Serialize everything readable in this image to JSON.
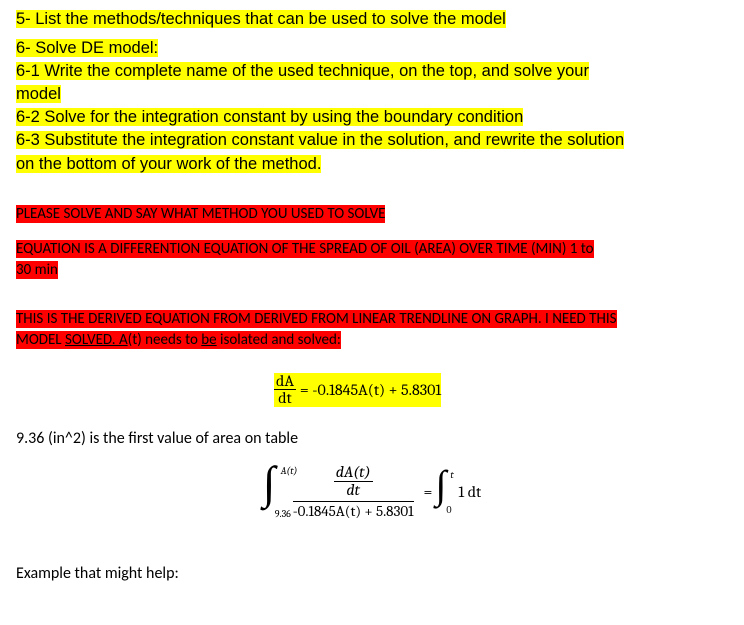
{
  "colors": {
    "highlight_yellow": "#ffff00",
    "highlight_red": "#ff0000",
    "text": "#000000",
    "background": "#ffffff"
  },
  "font": {
    "body": "Arial",
    "notes": "Calibri",
    "math": "Cambria Math",
    "body_size_pt": 12,
    "math_size_pt": 12
  },
  "q5": "5-  List the methods/techniques that can be used to solve the model",
  "q6_header": "6-  Solve DE model:",
  "q6_1a": "6-1 Write the complete name of the used technique, on the top, and solve your",
  "q6_1b": "model",
  "q6_2": "6-2 Solve for the integration constant by using the boundary condition",
  "q6_3a": "6-3 Substitute the integration constant value in the solution, and rewrite the solution",
  "q6_3b": "on the bottom of your work of the method.",
  "please": "PLEASE SOLVE AND SAY WHAT METHOD YOU USED TO SOLVE",
  "desc_a": "EQUATION IS A DIFFERENTION EQUATION OF THE SPREAD OF OIL (AREA) OVER TIME (MIN) 1 to",
  "desc_b": "30 min",
  "derived_a": "THIS IS THE DERIVED EQUATION FROM DERIVED FROM LINEAR TRENDLINE ON GRAPH. I NEED THIS",
  "derived_b_pre": "MODEL ",
  "derived_b_u1": "SOLVED. A",
  "derived_b_mid": "(t) needs to ",
  "derived_b_u2": "be",
  "derived_b_post": " isolated and solved:",
  "eq1": {
    "num": "dA",
    "den": "dt",
    "rhs": "= -0.1845A(t) + 5.8301"
  },
  "note_936": "9.36 (in^2) is the first value of area on table",
  "eq2": {
    "left_upper": "A(t)",
    "left_lower": "9.36",
    "inner_num": "dA(t)",
    "inner_den": "dt",
    "outer_den": "-0.1845A(t) + 5.8301",
    "equals": "=",
    "right_upper": "t",
    "right_lower": "0",
    "right_integrand": "1 dt"
  },
  "example": "Example that might help:"
}
